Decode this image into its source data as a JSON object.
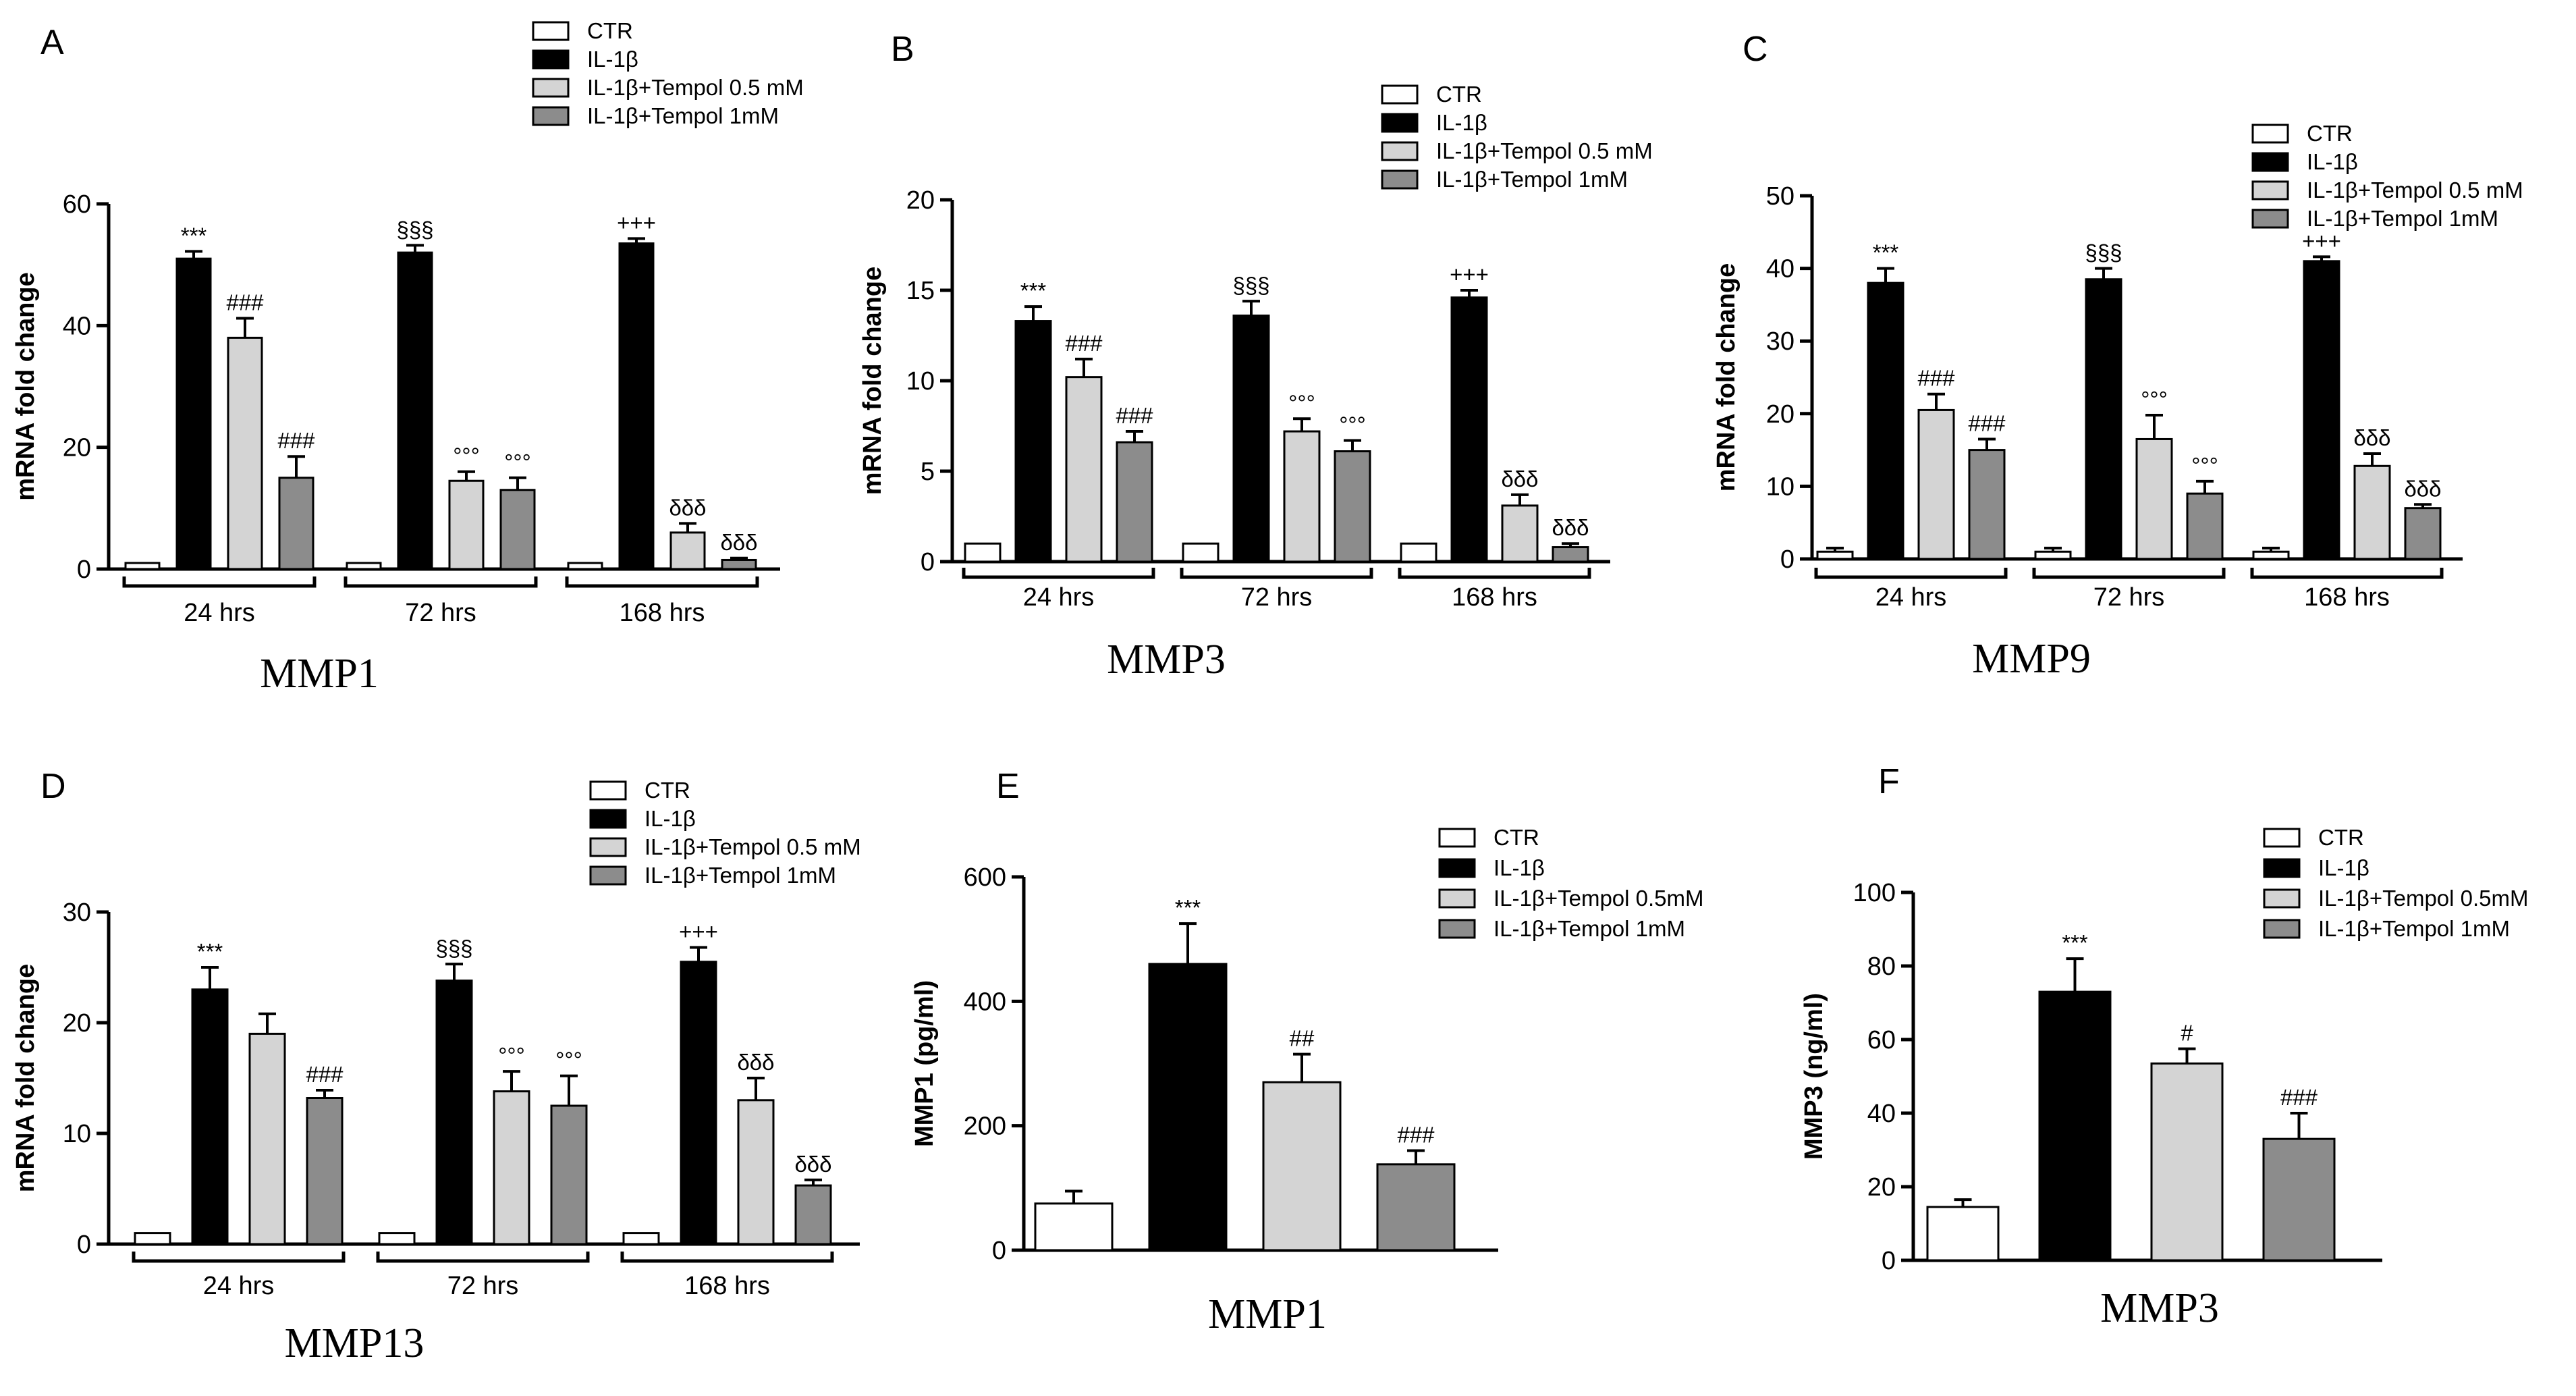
{
  "legend_styles": [
    {
      "key": "CTR",
      "fill": "#ffffff"
    },
    {
      "key": "IL1b",
      "fill": "#000000"
    },
    {
      "key": "T05",
      "fill": "#d4d4d4"
    },
    {
      "key": "T1",
      "fill": "#8c8c8c"
    }
  ],
  "chart_data": [
    {
      "panel": "A",
      "type": "bar",
      "title": "MMP1",
      "ylabel": "mRNA fold change",
      "ylim": [
        0,
        60
      ],
      "yticks": [
        "0",
        "20",
        "40",
        "60"
      ],
      "groups": [
        "24 hrs",
        "72 hrs",
        "168 hrs"
      ],
      "legend": [
        "CTR",
        "IL-1β",
        "IL-1β+Tempol 0.5 mM",
        "IL-1β+Tempol 1mM"
      ],
      "series": [
        {
          "name": "CTR",
          "values": [
            1,
            1,
            1
          ],
          "errors": [
            0,
            0,
            0
          ],
          "labels": [
            "",
            "",
            ""
          ]
        },
        {
          "name": "IL-1β",
          "values": [
            51,
            52,
            53.5
          ],
          "errors": [
            1.2,
            1.2,
            0.8
          ],
          "labels": [
            "***",
            "§§§",
            "+++"
          ]
        },
        {
          "name": "IL-1β+Tempol 0.5 mM",
          "values": [
            38,
            14.5,
            6
          ],
          "errors": [
            3.2,
            1.5,
            1.5
          ],
          "labels": [
            "###",
            "°°°",
            "δδδ"
          ]
        },
        {
          "name": "IL-1β+Tempol 1mM",
          "values": [
            15,
            13,
            1.5
          ],
          "errors": [
            3.5,
            2,
            0.3
          ],
          "labels": [
            "###",
            "°°°",
            "δδδ"
          ]
        }
      ]
    },
    {
      "panel": "B",
      "type": "bar",
      "title": "MMP3",
      "ylabel": "mRNA fold change",
      "ylim": [
        0,
        20
      ],
      "yticks": [
        "0",
        "5",
        "10",
        "15",
        "20"
      ],
      "groups": [
        "24 hrs",
        "72 hrs",
        "168 hrs"
      ],
      "legend": [
        "CTR",
        "IL-1β",
        "IL-1β+Tempol 0.5 mM",
        "IL-1β+Tempol 1mM"
      ],
      "series": [
        {
          "name": "CTR",
          "values": [
            1,
            1,
            1
          ],
          "errors": [
            0,
            0,
            0
          ],
          "labels": [
            "",
            "",
            ""
          ]
        },
        {
          "name": "IL-1β",
          "values": [
            13.3,
            13.6,
            14.6
          ],
          "errors": [
            0.8,
            0.8,
            0.4
          ],
          "labels": [
            "***",
            "§§§",
            "+++"
          ]
        },
        {
          "name": "IL-1β+Tempol 0.5 mM",
          "values": [
            10.2,
            7.2,
            3.1
          ],
          "errors": [
            1,
            0.7,
            0.6
          ],
          "labels": [
            "###",
            "°°°",
            "δδδ"
          ]
        },
        {
          "name": "IL-1β+Tempol 1mM",
          "values": [
            6.6,
            6.1,
            0.8
          ],
          "errors": [
            0.6,
            0.6,
            0.2
          ],
          "labels": [
            "###",
            "°°°",
            "δδδ"
          ]
        }
      ]
    },
    {
      "panel": "C",
      "type": "bar",
      "title": "MMP9",
      "ylabel": "mRNA fold change",
      "ylim": [
        0,
        50
      ],
      "yticks": [
        "0",
        "10",
        "20",
        "30",
        "40",
        "50"
      ],
      "groups": [
        "24 hrs",
        "72 hrs",
        "168 hrs"
      ],
      "legend": [
        "CTR",
        "IL-1β",
        "IL-1β+Tempol 0.5 mM",
        "IL-1β+Tempol 1mM"
      ],
      "series": [
        {
          "name": "CTR",
          "values": [
            1,
            1,
            1
          ],
          "errors": [
            0.5,
            0.5,
            0.5
          ],
          "labels": [
            "",
            "",
            ""
          ]
        },
        {
          "name": "IL-1β",
          "values": [
            38,
            38.5,
            41
          ],
          "errors": [
            2,
            1.5,
            0.6
          ],
          "labels": [
            "***",
            "§§§",
            "+++"
          ]
        },
        {
          "name": "IL-1β+Tempol 0.5 mM",
          "values": [
            20.5,
            16.5,
            12.8
          ],
          "errors": [
            2.2,
            3.3,
            1.7
          ],
          "labels": [
            "###",
            "°°°",
            "δδδ"
          ]
        },
        {
          "name": "IL-1β+Tempol 1mM",
          "values": [
            15,
            9,
            7
          ],
          "errors": [
            1.5,
            1.7,
            0.5
          ],
          "labels": [
            "###",
            "°°°",
            "δδδ"
          ]
        }
      ]
    },
    {
      "panel": "D",
      "type": "bar",
      "title": "MMP13",
      "ylabel": "mRNA fold change",
      "ylim": [
        0,
        30
      ],
      "yticks": [
        "0",
        "10",
        "20",
        "30"
      ],
      "groups": [
        "24 hrs",
        "72 hrs",
        "168 hrs"
      ],
      "legend": [
        "CTR",
        "IL-1β",
        "IL-1β+Tempol 0.5 mM",
        "IL-1β+Tempol 1mM"
      ],
      "series": [
        {
          "name": "CTR",
          "values": [
            1,
            1,
            1
          ],
          "errors": [
            0,
            0,
            0
          ],
          "labels": [
            "",
            "",
            ""
          ]
        },
        {
          "name": "IL-1β",
          "values": [
            23,
            23.8,
            25.5
          ],
          "errors": [
            2,
            1.5,
            1.3
          ],
          "labels": [
            "***",
            "§§§",
            "+++"
          ]
        },
        {
          "name": "IL-1β+Tempol 0.5 mM",
          "values": [
            19,
            13.8,
            13
          ],
          "errors": [
            1.8,
            1.8,
            2
          ],
          "labels": [
            "",
            "°°°",
            "δδδ"
          ]
        },
        {
          "name": "IL-1β+Tempol 1mM",
          "values": [
            13.2,
            12.5,
            5.3
          ],
          "errors": [
            0.7,
            2.7,
            0.5
          ],
          "labels": [
            "###",
            "°°°",
            "δδδ"
          ]
        }
      ]
    },
    {
      "panel": "E",
      "type": "bar",
      "title": "MMP1",
      "ylabel": "MMP1 (pg/ml)",
      "ylim": [
        0,
        600
      ],
      "yticks": [
        "0",
        "200",
        "400",
        "600"
      ],
      "groups": [
        ""
      ],
      "legend": [
        "CTR",
        "IL-1β",
        "IL-1β+Tempol 0.5mM",
        "IL-1β+Tempol 1mM"
      ],
      "series": [
        {
          "name": "CTR",
          "values": [
            75
          ],
          "errors": [
            20
          ],
          "labels": [
            ""
          ]
        },
        {
          "name": "IL-1β",
          "values": [
            460
          ],
          "errors": [
            65
          ],
          "labels": [
            "***"
          ]
        },
        {
          "name": "IL-1β+Tempol 0.5mM",
          "values": [
            270
          ],
          "errors": [
            45
          ],
          "labels": [
            "##"
          ]
        },
        {
          "name": "IL-1β+Tempol 1mM",
          "values": [
            138
          ],
          "errors": [
            22
          ],
          "labels": [
            "###"
          ]
        }
      ]
    },
    {
      "panel": "F",
      "type": "bar",
      "title": "MMP3",
      "ylabel": "MMP3 (ng/ml)",
      "ylim": [
        0,
        100
      ],
      "yticks": [
        "0",
        "20",
        "40",
        "60",
        "80",
        "100"
      ],
      "groups": [
        ""
      ],
      "legend": [
        "CTR",
        "IL-1β",
        "IL-1β+Tempol 0.5mM",
        "IL-1β+Tempol 1mM"
      ],
      "series": [
        {
          "name": "CTR",
          "values": [
            14.5
          ],
          "errors": [
            2
          ],
          "labels": [
            ""
          ]
        },
        {
          "name": "IL-1β",
          "values": [
            73
          ],
          "errors": [
            9
          ],
          "labels": [
            "***"
          ]
        },
        {
          "name": "IL-1β+Tempol 0.5mM",
          "values": [
            53.5
          ],
          "errors": [
            4
          ],
          "labels": [
            "#"
          ]
        },
        {
          "name": "IL-1β+Tempol 1mM",
          "values": [
            33
          ],
          "errors": [
            7
          ],
          "labels": [
            "###"
          ]
        }
      ]
    }
  ]
}
